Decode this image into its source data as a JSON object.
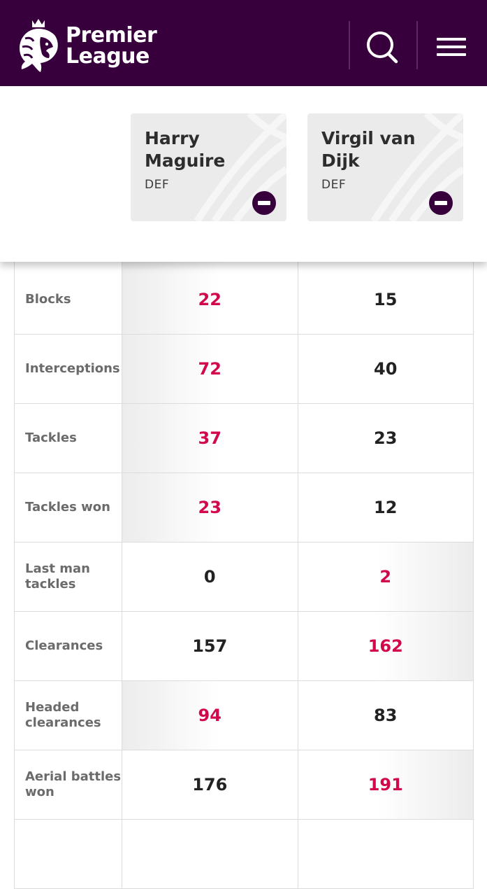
{
  "header": {
    "brand_line1": "Premier",
    "brand_line2": "League",
    "logo_icon": "premier-league-lion-icon",
    "search_icon": "search-icon",
    "menu_icon": "hamburger-menu-icon",
    "background_color": "#37003c"
  },
  "players": [
    {
      "name": "Harry Maguire",
      "position": "DEF"
    },
    {
      "name": "Virgil van Dijk",
      "position": "DEF"
    }
  ],
  "stats": [
    {
      "label": "Blocks",
      "values": [
        "22",
        "15"
      ],
      "leader": 0
    },
    {
      "label": "Interceptions",
      "values": [
        "72",
        "40"
      ],
      "leader": 0
    },
    {
      "label": "Tackles",
      "values": [
        "37",
        "23"
      ],
      "leader": 0
    },
    {
      "label": "Tackles won",
      "values": [
        "23",
        "12"
      ],
      "leader": 0
    },
    {
      "label": "Last man tackles",
      "values": [
        "0",
        "2"
      ],
      "leader": 1
    },
    {
      "label": "Clearances",
      "values": [
        "157",
        "162"
      ],
      "leader": 1
    },
    {
      "label": "Headed clearances",
      "values": [
        "94",
        "83"
      ],
      "leader": 0
    },
    {
      "label": "Aerial battles won",
      "values": [
        "176",
        "191"
      ],
      "leader": 1
    },
    {
      "label": "",
      "values": [
        "",
        ""
      ],
      "leader": null
    }
  ],
  "colors": {
    "highlight": "#d1094b",
    "normal_value": "#222222",
    "label": "#6b6b6b"
  }
}
